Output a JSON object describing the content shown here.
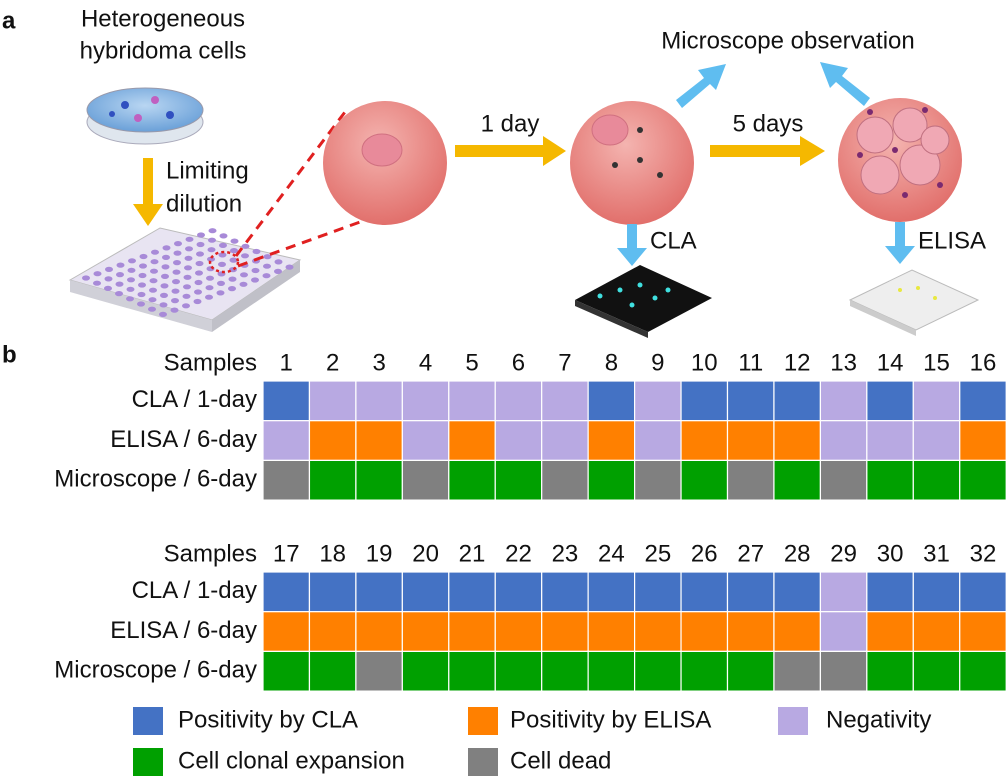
{
  "panel_a": {
    "label": "a",
    "source": [
      "Heterogeneous",
      "hybridoma cells"
    ],
    "dilution": [
      "Limiting",
      "dilution"
    ],
    "step1": "1 day",
    "step2": "5 days",
    "observation": "Microscope observation",
    "assay1": "CLA",
    "assay2": "ELISA"
  },
  "panel_b": {
    "label": "b",
    "row_header": "Samples",
    "row_labels": [
      "CLA / 1-day",
      "ELISA / 6-day",
      "Microscope / 6-day"
    ],
    "legend": [
      {
        "label": "Positivity by CLA",
        "color": "#4472c4"
      },
      {
        "label": "Positivity by ELISA",
        "color": "#ff8000"
      },
      {
        "label": "Negativity",
        "color": "#b8a9e2"
      },
      {
        "label": "Cell clonal expansion",
        "color": "#00a000"
      },
      {
        "label": "Cell dead",
        "color": "#808080"
      }
    ],
    "blocks": [
      {
        "samples": [
          1,
          2,
          3,
          4,
          5,
          6,
          7,
          8,
          9,
          10,
          11,
          12,
          13,
          14,
          15,
          16
        ],
        "rows": [
          [
            "Positivity by CLA",
            "Negativity",
            "Negativity",
            "Negativity",
            "Negativity",
            "Negativity",
            "Negativity",
            "Positivity by CLA",
            "Negativity",
            "Positivity by CLA",
            "Positivity by CLA",
            "Positivity by CLA",
            "Negativity",
            "Positivity by CLA",
            "Negativity",
            "Positivity by CLA"
          ],
          [
            "Negativity",
            "Positivity by ELISA",
            "Positivity by ELISA",
            "Negativity",
            "Positivity by ELISA",
            "Negativity",
            "Negativity",
            "Positivity by ELISA",
            "Negativity",
            "Positivity by ELISA",
            "Positivity by ELISA",
            "Positivity by ELISA",
            "Negativity",
            "Negativity",
            "Negativity",
            "Positivity by ELISA"
          ],
          [
            "Cell dead",
            "Cell clonal expansion",
            "Cell clonal expansion",
            "Cell dead",
            "Cell clonal expansion",
            "Cell clonal expansion",
            "Cell dead",
            "Cell clonal expansion",
            "Cell dead",
            "Cell clonal expansion",
            "Cell dead",
            "Cell clonal expansion",
            "Cell dead",
            "Cell clonal expansion",
            "Cell clonal expansion",
            "Cell clonal expansion"
          ]
        ]
      },
      {
        "samples": [
          17,
          18,
          19,
          20,
          21,
          22,
          23,
          24,
          25,
          26,
          27,
          28,
          29,
          30,
          31,
          32
        ],
        "rows": [
          [
            "Positivity by CLA",
            "Positivity by CLA",
            "Positivity by CLA",
            "Positivity by CLA",
            "Positivity by CLA",
            "Positivity by CLA",
            "Positivity by CLA",
            "Positivity by CLA",
            "Positivity by CLA",
            "Positivity by CLA",
            "Positivity by CLA",
            "Positivity by CLA",
            "Negativity",
            "Positivity by CLA",
            "Positivity by CLA",
            "Positivity by CLA"
          ],
          [
            "Positivity by ELISA",
            "Positivity by ELISA",
            "Positivity by ELISA",
            "Positivity by ELISA",
            "Positivity by ELISA",
            "Positivity by ELISA",
            "Positivity by ELISA",
            "Positivity by ELISA",
            "Positivity by ELISA",
            "Positivity by ELISA",
            "Positivity by ELISA",
            "Positivity by ELISA",
            "Negativity",
            "Positivity by ELISA",
            "Positivity by ELISA",
            "Positivity by ELISA"
          ],
          [
            "Cell clonal expansion",
            "Cell clonal expansion",
            "Cell dead",
            "Cell clonal expansion",
            "Cell clonal expansion",
            "Cell clonal expansion",
            "Cell clonal expansion",
            "Cell clonal expansion",
            "Cell clonal expansion",
            "Cell clonal expansion",
            "Cell clonal expansion",
            "Cell dead",
            "Cell dead",
            "Cell clonal expansion",
            "Cell clonal expansion",
            "Cell clonal expansion"
          ]
        ]
      }
    ]
  }
}
